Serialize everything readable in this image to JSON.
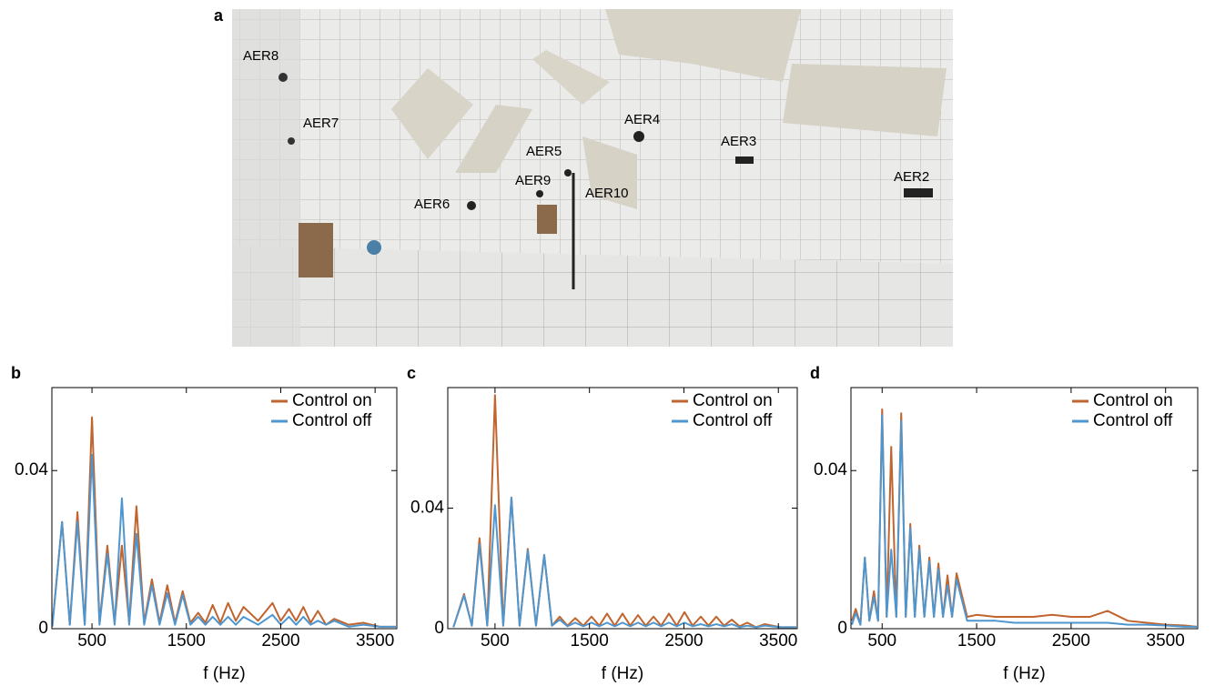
{
  "photo": {
    "panel_label": "a",
    "annotations": [
      "AER8",
      "AER7",
      "AER6",
      "AER5",
      "AER9",
      "AER10",
      "AER4",
      "AER3",
      "AER2"
    ]
  },
  "chart_data": [
    {
      "type": "line",
      "panel_label": "b",
      "xlabel": "f (Hz)",
      "x": [
        80,
        183,
        265,
        346,
        423,
        500,
        580,
        663,
        740,
        817,
        894,
        971,
        1053,
        1135,
        1216,
        1298,
        1380,
        1461,
        1543,
        1625,
        1702,
        1779,
        1860,
        1942,
        2024,
        2106,
        2260,
        2413,
        2500,
        2587,
        2663,
        2740,
        2817,
        2894,
        2980,
        3067,
        3220,
        3375,
        3550,
        3720
      ],
      "series": [
        {
          "name": "Control on",
          "color": "#c0652f",
          "values": [
            0.001,
            0.027,
            0.001,
            0.0295,
            0.001,
            0.0535,
            0.0015,
            0.021,
            0.0015,
            0.021,
            0.0015,
            0.031,
            0.0015,
            0.0125,
            0.0015,
            0.011,
            0.0015,
            0.0095,
            0.0015,
            0.004,
            0.0015,
            0.006,
            0.0015,
            0.0065,
            0.002,
            0.0055,
            0.002,
            0.0065,
            0.002,
            0.005,
            0.002,
            0.0055,
            0.0015,
            0.0045,
            0.001,
            0.0025,
            0.001,
            0.0015,
            0.0005,
            0.0005
          ]
        },
        {
          "name": "Control off",
          "color": "#4f96cf",
          "values": [
            0.0005,
            0.027,
            0.001,
            0.027,
            0.001,
            0.044,
            0.001,
            0.019,
            0.001,
            0.033,
            0.001,
            0.024,
            0.001,
            0.011,
            0.001,
            0.009,
            0.001,
            0.0085,
            0.001,
            0.003,
            0.001,
            0.003,
            0.001,
            0.003,
            0.001,
            0.003,
            0.001,
            0.0035,
            0.001,
            0.003,
            0.001,
            0.003,
            0.001,
            0.002,
            0.001,
            0.002,
            0.0005,
            0.001,
            0.0005,
            0.0005
          ]
        }
      ],
      "xlim": [
        75,
        3730
      ],
      "xticks": [
        500,
        1500,
        2500,
        3500
      ],
      "ylim": [
        0,
        0.061
      ],
      "yticks": [
        0,
        0.04
      ],
      "legend": "upper right"
    },
    {
      "type": "line",
      "panel_label": "c",
      "xlabel": "f (Hz)",
      "x": [
        60,
        172,
        255,
        336,
        418,
        500,
        587,
        674,
        760,
        847,
        934,
        1021,
        1103,
        1185,
        1267,
        1349,
        1435,
        1522,
        1604,
        1686,
        1768,
        1850,
        1932,
        2014,
        2096,
        2178,
        2260,
        2341,
        2424,
        2506,
        2592,
        2679,
        2761,
        2843,
        2925,
        3007,
        3089,
        3171,
        3263,
        3354,
        3520,
        3690
      ],
      "series": [
        {
          "name": "Control on",
          "color": "#c0652f",
          "values": [
            0.0005,
            0.0115,
            0.001,
            0.03,
            0.001,
            0.0775,
            0.001,
            0.0435,
            0.001,
            0.0265,
            0.001,
            0.0245,
            0.001,
            0.004,
            0.001,
            0.0035,
            0.001,
            0.004,
            0.001,
            0.005,
            0.001,
            0.005,
            0.001,
            0.0045,
            0.001,
            0.004,
            0.001,
            0.005,
            0.001,
            0.0055,
            0.001,
            0.004,
            0.001,
            0.004,
            0.001,
            0.003,
            0.0008,
            0.002,
            0.0005,
            0.0015,
            0.0005,
            0.0005
          ]
        },
        {
          "name": "Control off",
          "color": "#4f96cf",
          "values": [
            0.0005,
            0.011,
            0.001,
            0.028,
            0.001,
            0.041,
            0.001,
            0.0435,
            0.001,
            0.026,
            0.001,
            0.0245,
            0.001,
            0.003,
            0.0008,
            0.002,
            0.0008,
            0.002,
            0.0008,
            0.002,
            0.0008,
            0.002,
            0.0008,
            0.002,
            0.0008,
            0.002,
            0.0008,
            0.002,
            0.0008,
            0.002,
            0.0008,
            0.0015,
            0.0008,
            0.0015,
            0.0008,
            0.0015,
            0.0005,
            0.001,
            0.0005,
            0.001,
            0.0005,
            0.0005
          ]
        }
      ],
      "xlim": [
        0,
        3700
      ],
      "xticks": [
        500,
        1500,
        2500,
        3500
      ],
      "ylim": [
        0,
        0.08
      ],
      "yticks": [
        0,
        0.04
      ],
      "legend": "upper right"
    },
    {
      "type": "line",
      "panel_label": "d",
      "xlabel": "f (Hz)",
      "x": [
        180,
        221,
        270,
        317,
        365,
        413,
        457,
        500,
        548,
        596,
        650,
        702,
        750,
        798,
        846,
        894,
        947,
        1000,
        1048,
        1096,
        1144,
        1192,
        1240,
        1288,
        1400,
        1500,
        1700,
        1900,
        2100,
        2300,
        2500,
        2700,
        2885,
        3100,
        3300,
        3500,
        3700,
        3830
      ],
      "series": [
        {
          "name": "Control on",
          "color": "#c0652f",
          "values": [
            0.002,
            0.005,
            0.001,
            0.018,
            0.002,
            0.0095,
            0.002,
            0.0555,
            0.003,
            0.046,
            0.003,
            0.0545,
            0.003,
            0.0265,
            0.003,
            0.021,
            0.003,
            0.018,
            0.003,
            0.0165,
            0.003,
            0.0135,
            0.003,
            0.014,
            0.003,
            0.0035,
            0.003,
            0.003,
            0.003,
            0.0035,
            0.003,
            0.003,
            0.0045,
            0.002,
            0.0015,
            0.001,
            0.0008,
            0.0005
          ]
        },
        {
          "name": "Control off",
          "color": "#4f96cf",
          "values": [
            0.001,
            0.004,
            0.001,
            0.018,
            0.002,
            0.008,
            0.002,
            0.054,
            0.003,
            0.02,
            0.003,
            0.0525,
            0.003,
            0.0255,
            0.003,
            0.02,
            0.003,
            0.017,
            0.003,
            0.015,
            0.003,
            0.011,
            0.003,
            0.0125,
            0.002,
            0.002,
            0.002,
            0.0015,
            0.0015,
            0.0015,
            0.0015,
            0.0015,
            0.0015,
            0.001,
            0.001,
            0.0008,
            0.0005,
            0.0005
          ]
        }
      ],
      "xlim": [
        170,
        3840
      ],
      "xticks": [
        500,
        1500,
        2500,
        3500
      ],
      "ylim": [
        0,
        0.061
      ],
      "yticks": [
        0,
        0.04
      ],
      "legend": "upper right"
    }
  ]
}
